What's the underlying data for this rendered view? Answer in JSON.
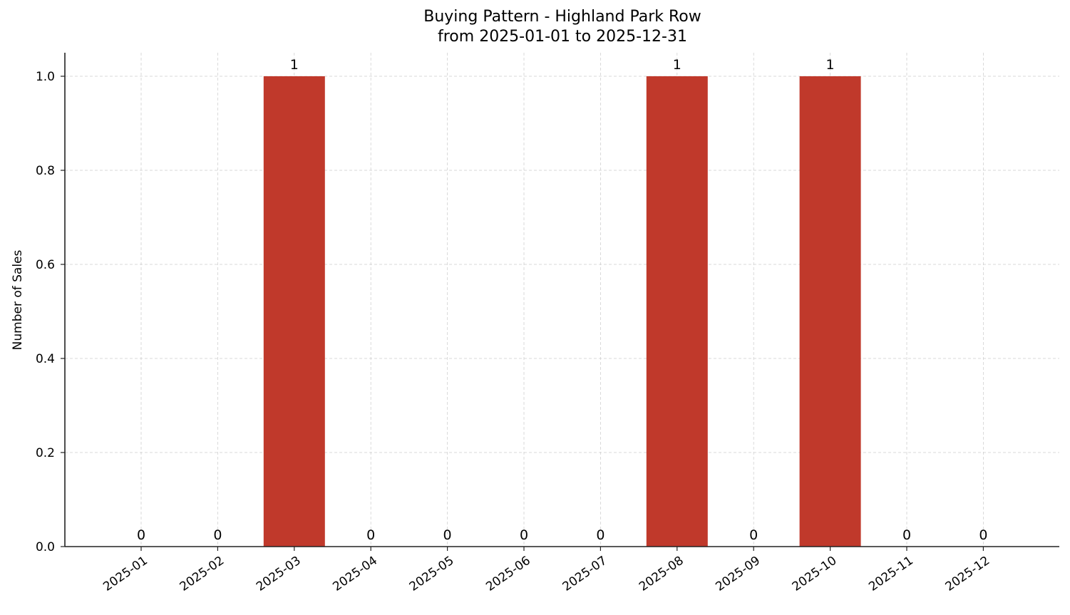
{
  "chart_data": {
    "type": "bar",
    "title": "Buying Pattern - Highland Park Row",
    "subtitle": "from 2025-01-01 to 2025-12-31",
    "xlabel": "",
    "ylabel": "Number of Sales",
    "categories": [
      "2025-01",
      "2025-02",
      "2025-03",
      "2025-04",
      "2025-05",
      "2025-06",
      "2025-07",
      "2025-08",
      "2025-09",
      "2025-10",
      "2025-11",
      "2025-12"
    ],
    "values": [
      0,
      0,
      1,
      0,
      0,
      0,
      0,
      1,
      0,
      1,
      0,
      0
    ],
    "bar_labels": [
      "0",
      "0",
      "1",
      "0",
      "0",
      "0",
      "0",
      "1",
      "0",
      "1",
      "0",
      "0"
    ],
    "yticks": [
      "0.0",
      "0.2",
      "0.4",
      "0.6",
      "0.8",
      "1.0"
    ],
    "ylim": [
      0,
      1.05
    ],
    "grid": true,
    "legend": "none",
    "colors": {
      "bar": "#c0392b",
      "grid": "#cccccc",
      "axis": "#222222"
    }
  }
}
